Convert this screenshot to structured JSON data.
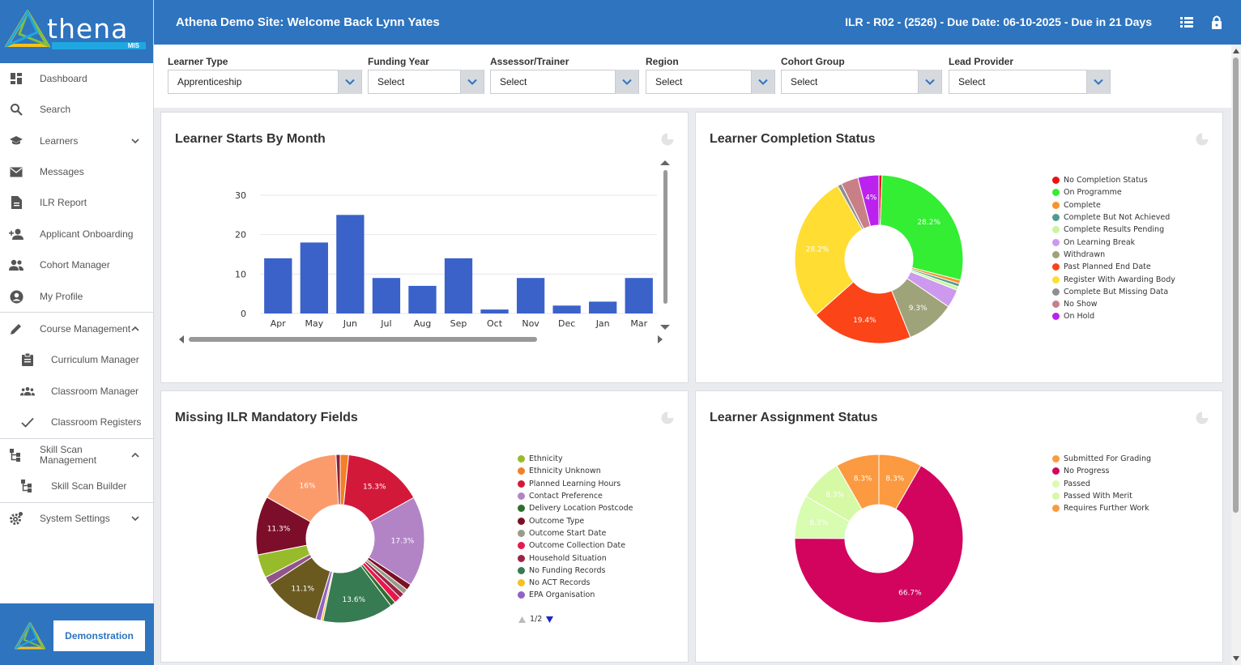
{
  "brand": {
    "name": "thena",
    "suffix": "MIS"
  },
  "sidebar": {
    "items": [
      {
        "label": "Dashboard",
        "icon": "dashboard-icon"
      },
      {
        "label": "Search",
        "icon": "search-icon"
      },
      {
        "label": "Learners",
        "icon": "graduation-cap-icon"
      },
      {
        "label": "Messages",
        "icon": "envelope-icon"
      },
      {
        "label": "ILR Report",
        "icon": "document-icon"
      },
      {
        "label": "Applicant Onboarding",
        "icon": "person-add-icon"
      },
      {
        "label": "Cohort Manager",
        "icon": "people-icon"
      },
      {
        "label": "My Profile",
        "icon": "account-circle-icon"
      },
      {
        "label": "Course Management",
        "icon": "pencil-icon"
      },
      {
        "label": "Curriculum Manager",
        "icon": "clipboard-icon"
      },
      {
        "label": "Classroom Manager",
        "icon": "group-icon"
      },
      {
        "label": "Classroom Registers",
        "icon": "check-icon"
      },
      {
        "label": "Skill Scan Management",
        "icon": "hierarchy-icon"
      },
      {
        "label": "Skill Scan Builder",
        "icon": "hierarchy-icon"
      },
      {
        "label": "System Settings",
        "icon": "gear-icon"
      }
    ],
    "demo_label": "Demonstration"
  },
  "header": {
    "welcome": "Athena Demo Site: Welcome Back Lynn Yates",
    "ilr_status": "ILR - R02 - (2526) - Due Date: 06-10-2025 - Due in 21 Days"
  },
  "filters": [
    {
      "label": "Learner Type",
      "value": "Apprenticeship"
    },
    {
      "label": "Funding Year",
      "value": "Select"
    },
    {
      "label": "Assessor/Trainer",
      "value": "Select"
    },
    {
      "label": "Region",
      "value": "Select"
    },
    {
      "label": "Cohort Group",
      "value": "Select"
    },
    {
      "label": "Lead Provider",
      "value": "Select"
    }
  ],
  "cards": {
    "starts": {
      "title": "Learner Starts By Month"
    },
    "completion": {
      "title": "Learner Completion Status"
    },
    "missing": {
      "title": "Missing ILR Mandatory Fields",
      "pager": "1/2"
    },
    "assignment": {
      "title": "Learner Assignment Status"
    }
  },
  "chart_data": [
    {
      "type": "bar",
      "title": "Learner Starts By Month",
      "categories": [
        "Apr",
        "May",
        "Jun",
        "Jul",
        "Aug",
        "Sep",
        "Oct",
        "Nov",
        "Dec",
        "Jan",
        "Mar"
      ],
      "values": [
        14,
        18,
        25,
        9,
        7,
        14,
        1,
        9,
        2,
        3,
        9
      ],
      "yticks": [
        0,
        10,
        20,
        30
      ],
      "ylim": [
        0,
        30
      ],
      "color": "#3a62c9",
      "grid": true
    },
    {
      "type": "pie",
      "title": "Learner Completion Status",
      "legend_position": "right",
      "slices": [
        {
          "label": "No Completion Status",
          "value": 0.6,
          "color": "#ee1111",
          "text": ""
        },
        {
          "label": "On Programme",
          "value": 28.2,
          "color": "#33ee33",
          "text": "28.2%"
        },
        {
          "label": "Complete",
          "value": 0.7,
          "color": "#f7932f",
          "text": ""
        },
        {
          "label": "Complete But Not Achieved",
          "value": 0.6,
          "color": "#4f9c8f",
          "text": ""
        },
        {
          "label": "Complete Results Pending",
          "value": 0.7,
          "color": "#c8f5a0",
          "text": ""
        },
        {
          "label": "On Learning Break",
          "value": 3.5,
          "color": "#cc99ee",
          "text": ""
        },
        {
          "label": "Withdrawn",
          "value": 9.3,
          "color": "#9fa37a",
          "text": "9.3%"
        },
        {
          "label": "Past Planned End Date",
          "value": 19.4,
          "color": "#fb4418",
          "text": "19.4%"
        },
        {
          "label": "Register With Awarding Body",
          "value": 28.2,
          "color": "#ffdd33",
          "text": "28.2%"
        },
        {
          "label": "Complete But Missing Data",
          "value": 0.8,
          "color": "#8f8f8f",
          "text": ""
        },
        {
          "label": "No Show",
          "value": 3.3,
          "color": "#c97f86",
          "text": ""
        },
        {
          "label": "On Hold",
          "value": 4.0,
          "color": "#bb22ee",
          "text": "4%"
        }
      ]
    },
    {
      "type": "pie",
      "title": "Missing ILR Mandatory Fields",
      "legend_position": "right",
      "slices": [
        {
          "label": "Ethnicity",
          "value": 4.5,
          "color": "#97bb2a",
          "text": ""
        },
        {
          "label": "Ethnicity Unknown",
          "value": 1.6,
          "color": "#f37f27",
          "text": ""
        },
        {
          "label": "Planned Learning Hours",
          "value": 15.3,
          "color": "#d3193a",
          "text": "15.3%"
        },
        {
          "label": "Contact Preference",
          "value": 17.3,
          "color": "#b284c6",
          "text": "17.3%"
        },
        {
          "label": "Delivery Location Postcode",
          "value": 1.0,
          "color": "#2f6d2f",
          "text": ""
        },
        {
          "label": "Outcome Type",
          "value": 1.2,
          "color": "#7b1027",
          "text": ""
        },
        {
          "label": "Outcome Start Date",
          "value": 1.0,
          "color": "#999c88",
          "text": ""
        },
        {
          "label": "Outcome Collection Date",
          "value": 1.3,
          "color": "#e8174d",
          "text": ""
        },
        {
          "label": "Household Situation",
          "value": 1.0,
          "color": "#9c2446",
          "text": ""
        },
        {
          "label": "No Funding Records",
          "value": 13.6,
          "color": "#377b52",
          "text": "13.6%"
        },
        {
          "label": "No ACT Records",
          "value": 0.4,
          "color": "#f5c021",
          "text": ""
        },
        {
          "label": "EPA Organisation",
          "value": 1.0,
          "color": "#9064c5",
          "text": ""
        }
      ],
      "unlisted_slices": [
        {
          "value": 11.1,
          "color": "#6a5a20",
          "text": "11.1%"
        },
        {
          "value": 1.6,
          "color": "#91548a",
          "text": ""
        },
        {
          "value": 11.3,
          "color": "#7d0e2a",
          "text": "11.3%"
        },
        {
          "value": 16.0,
          "color": "#fb9b6c",
          "text": "16%"
        },
        {
          "value": 0.8,
          "color": "#8a2038",
          "text": ""
        }
      ]
    },
    {
      "type": "pie",
      "title": "Learner Assignment Status",
      "legend_position": "right",
      "slices": [
        {
          "label": "Submitted For Grading",
          "value": 8.3,
          "color": "#fb9a40",
          "text": "8.3%"
        },
        {
          "label": "No Progress",
          "value": 66.7,
          "color": "#d2045e",
          "text": "66.7%"
        },
        {
          "label": "Passed",
          "value": 8.3,
          "color": "#d8fcb0",
          "text": "8.3%"
        },
        {
          "label": "Passed With Merit",
          "value": 8.3,
          "color": "#d6f9a5",
          "text": "8.3%"
        },
        {
          "label": "Requires Further Work",
          "value": 8.3,
          "color": "#fb9a40",
          "text": "8.3%"
        }
      ]
    }
  ]
}
